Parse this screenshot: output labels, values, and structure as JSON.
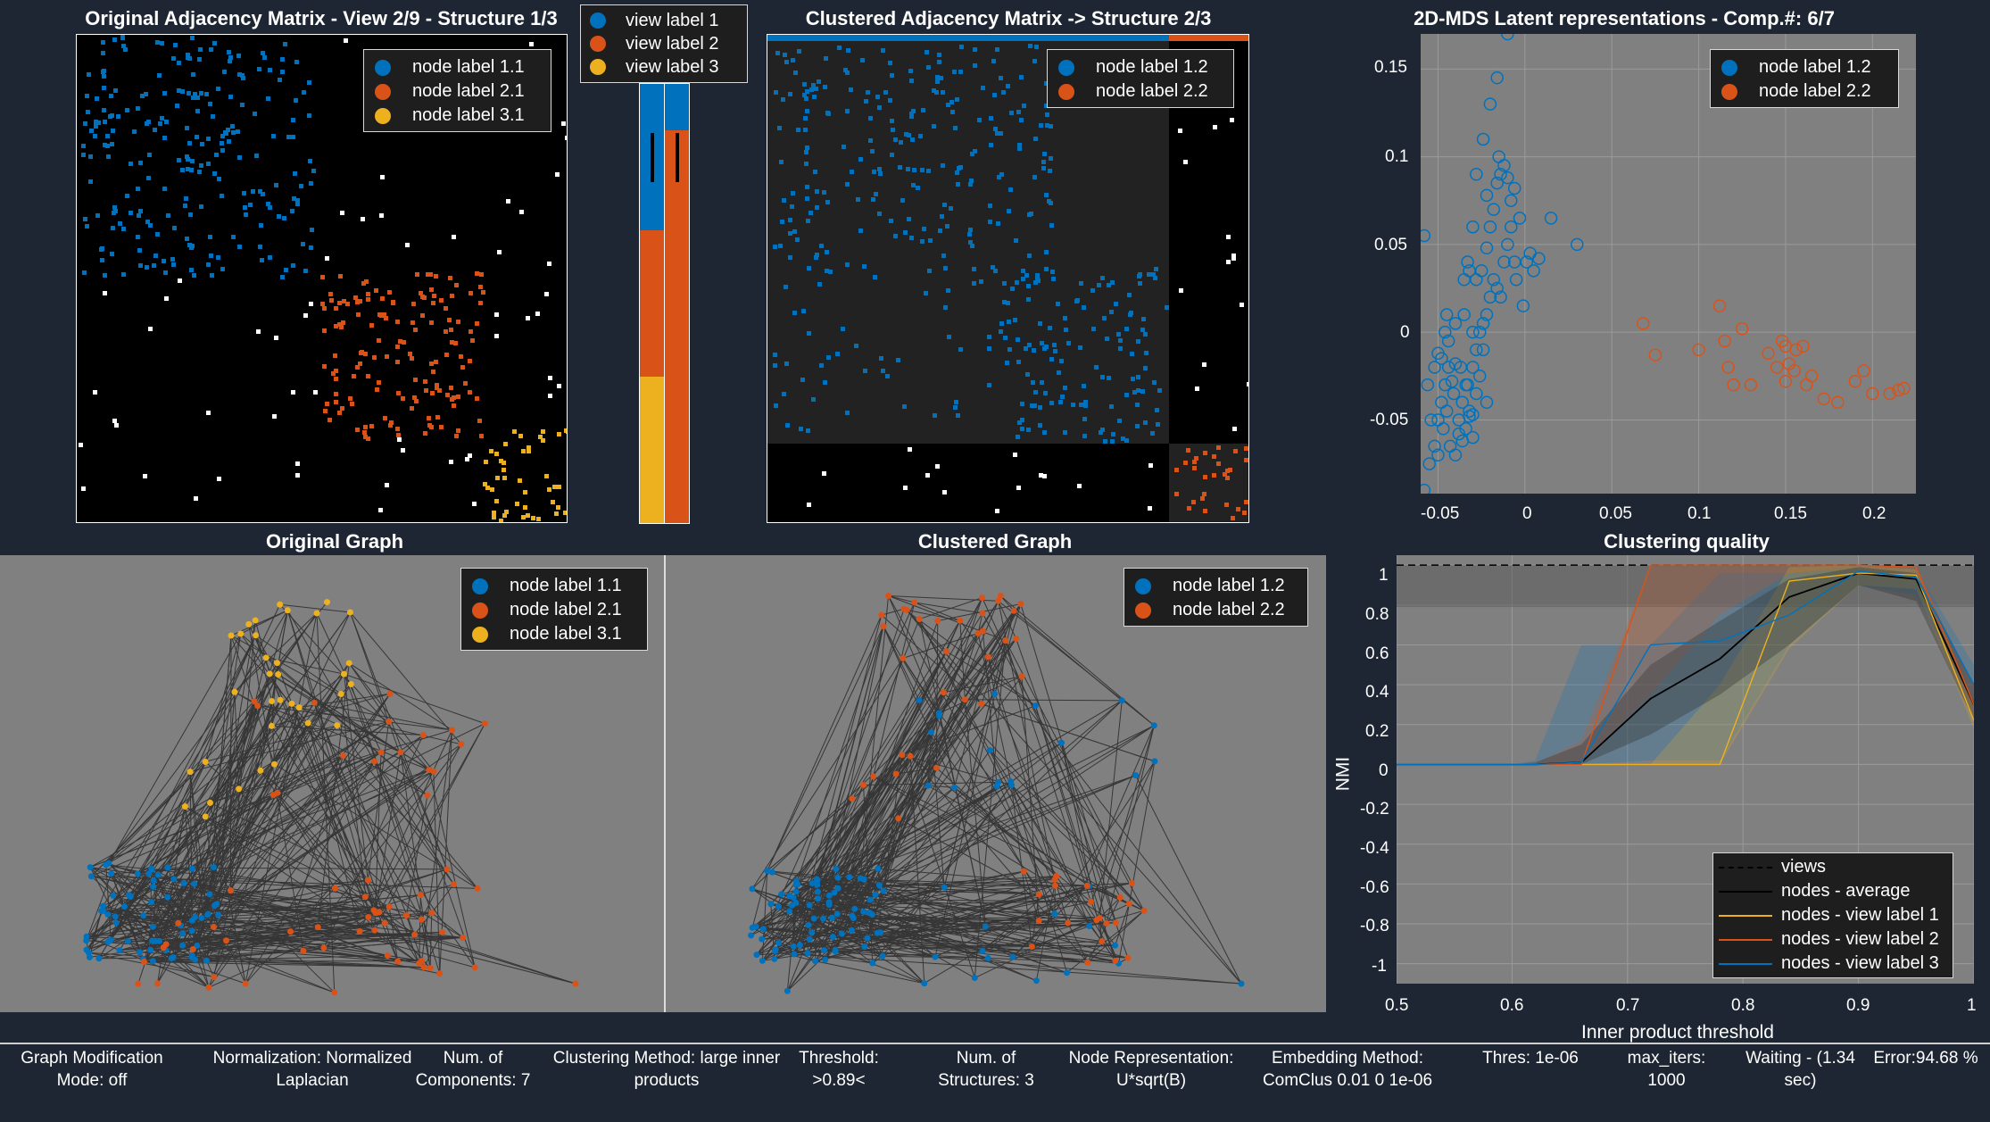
{
  "colors": {
    "blue": "#0072bd",
    "orange": "#d95319",
    "yellow": "#edb120",
    "figure_bg": "#1e2633",
    "axes_bg": "#808080"
  },
  "orig_matrix": {
    "title": "Original Adjacency Matrix - View 2/9 - Structure 1/3",
    "legend": [
      "node label 1.1",
      "node label 2.1",
      "node label 3.1"
    ]
  },
  "view_legend": [
    "view label 1",
    "view label 2",
    "view label 3"
  ],
  "clust_matrix": {
    "title": "Clustered Adjacency Matrix -> Structure 2/3",
    "legend": [
      "node label 1.2",
      "node label 2.2"
    ]
  },
  "mds": {
    "title": "2D-MDS Latent representations - Comp.#: 6/7",
    "legend": [
      "node label 1.2",
      "node label 2.2"
    ],
    "xticks": [
      "-0.05",
      "0",
      "0.05",
      "0.1",
      "0.15",
      "0.2"
    ],
    "yticks": [
      "0.15",
      "0.1",
      "0.05",
      "0",
      "-0.05"
    ]
  },
  "orig_graph": {
    "title": "Original Graph",
    "legend": [
      "node label 1.1",
      "node label 2.1",
      "node label 3.1"
    ]
  },
  "clust_graph": {
    "title": "Clustered Graph",
    "legend": [
      "node label 1.2",
      "node label 2.2"
    ]
  },
  "quality": {
    "title": "Clustering quality",
    "ylabel": "NMI",
    "xlabel": "Inner product threshold",
    "yticks": [
      "1",
      "0.8",
      "0.6",
      "0.4",
      "0.2",
      "0",
      "-0.2",
      "-0.4",
      "-0.6",
      "-0.8",
      "-1"
    ],
    "xticks": [
      "0.5",
      "0.6",
      "0.7",
      "0.8",
      "0.9",
      "1"
    ],
    "legend": [
      "views",
      "nodes - average",
      "nodes - view label 1",
      "nodes - view label 2",
      "nodes - view label 3"
    ]
  },
  "chart_data": [
    {
      "type": "scatter",
      "title": "2D-MDS Latent representations - Comp.#: 6/7",
      "xlim": [
        -0.06,
        0.225
      ],
      "ylim": [
        -0.092,
        0.17
      ],
      "series": [
        {
          "name": "node label 1.2",
          "color": "#0072bd",
          "points": [
            [
              -0.058,
              -0.09
            ],
            [
              -0.055,
              -0.075
            ],
            [
              -0.052,
              -0.065
            ],
            [
              -0.05,
              -0.05
            ],
            [
              -0.048,
              -0.04
            ],
            [
              -0.046,
              -0.03
            ],
            [
              -0.044,
              -0.02
            ],
            [
              -0.047,
              -0.055
            ],
            [
              -0.043,
              -0.065
            ],
            [
              -0.04,
              -0.07
            ],
            [
              -0.038,
              -0.05
            ],
            [
              -0.036,
              -0.04
            ],
            [
              -0.034,
              -0.03
            ],
            [
              -0.032,
              -0.045
            ],
            [
              -0.03,
              -0.06
            ],
            [
              -0.028,
              -0.035
            ],
            [
              -0.026,
              -0.025
            ],
            [
              -0.024,
              -0.01
            ],
            [
              -0.022,
              -0.04
            ],
            [
              -0.045,
              0.01
            ],
            [
              -0.04,
              0.005
            ],
            [
              -0.035,
              0.01
            ],
            [
              -0.03,
              0.0
            ],
            [
              -0.052,
              -0.02
            ],
            [
              -0.05,
              -0.012
            ],
            [
              -0.048,
              -0.015
            ],
            [
              -0.046,
              0.0
            ],
            [
              -0.044,
              -0.005
            ],
            [
              -0.042,
              -0.028
            ],
            [
              -0.04,
              -0.018
            ],
            [
              -0.038,
              -0.058
            ],
            [
              -0.036,
              -0.062
            ],
            [
              -0.034,
              -0.055
            ],
            [
              -0.032,
              -0.048
            ],
            [
              -0.03,
              -0.02
            ],
            [
              -0.028,
              -0.01
            ],
            [
              -0.026,
              0.0
            ],
            [
              -0.024,
              0.005
            ],
            [
              -0.022,
              0.01
            ],
            [
              -0.02,
              0.02
            ],
            [
              -0.018,
              0.03
            ],
            [
              -0.016,
              0.025
            ],
            [
              -0.014,
              0.02
            ],
            [
              -0.012,
              0.04
            ],
            [
              -0.01,
              0.05
            ],
            [
              -0.008,
              0.06
            ],
            [
              -0.006,
              0.04
            ],
            [
              -0.005,
              0.03
            ],
            [
              -0.003,
              0.065
            ],
            [
              -0.001,
              0.015
            ],
            [
              0.001,
              0.04
            ],
            [
              0.003,
              0.045
            ],
            [
              0.005,
              0.035
            ],
            [
              0.008,
              0.042
            ],
            [
              0.015,
              0.065
            ],
            [
              0.03,
              0.05
            ],
            [
              -0.025,
              0.035
            ],
            [
              -0.022,
              0.048
            ],
            [
              -0.02,
              0.06
            ],
            [
              -0.018,
              0.07
            ],
            [
              -0.016,
              0.085
            ],
            [
              -0.014,
              0.09
            ],
            [
              -0.012,
              0.095
            ],
            [
              -0.015,
              0.1
            ],
            [
              -0.022,
              0.078
            ],
            [
              -0.028,
              0.09
            ],
            [
              -0.03,
              0.06
            ],
            [
              -0.024,
              0.11
            ],
            [
              -0.02,
              0.13
            ],
            [
              -0.016,
              0.145
            ],
            [
              -0.01,
              0.088
            ],
            [
              -0.006,
              0.082
            ],
            [
              -0.008,
              0.075
            ],
            [
              -0.033,
              0.04
            ],
            [
              -0.035,
              0.03
            ],
            [
              -0.032,
              0.035
            ],
            [
              -0.028,
              0.03
            ],
            [
              -0.03,
              -0.047
            ],
            [
              -0.033,
              -0.03
            ],
            [
              -0.037,
              -0.02
            ],
            [
              -0.041,
              -0.035
            ],
            [
              -0.045,
              -0.045
            ],
            [
              -0.05,
              -0.07
            ],
            [
              -0.054,
              -0.05
            ],
            [
              -0.056,
              -0.03
            ],
            [
              -0.058,
              0.055
            ],
            [
              -0.01,
              0.17
            ]
          ]
        },
        {
          "name": "node label 2.2",
          "color": "#d95319",
          "points": [
            [
              0.068,
              0.005
            ],
            [
              0.075,
              -0.013
            ],
            [
              0.1,
              -0.01
            ],
            [
              0.112,
              0.015
            ],
            [
              0.115,
              -0.005
            ],
            [
              0.117,
              -0.02
            ],
            [
              0.12,
              -0.03
            ],
            [
              0.125,
              0.002
            ],
            [
              0.13,
              -0.03
            ],
            [
              0.14,
              -0.012
            ],
            [
              0.145,
              -0.02
            ],
            [
              0.148,
              -0.005
            ],
            [
              0.15,
              -0.008
            ],
            [
              0.152,
              -0.018
            ],
            [
              0.155,
              -0.022
            ],
            [
              0.16,
              -0.008
            ],
            [
              0.165,
              -0.025
            ],
            [
              0.18,
              -0.04
            ],
            [
              0.19,
              -0.028
            ],
            [
              0.195,
              -0.022
            ],
            [
              0.2,
              -0.035
            ],
            [
              0.21,
              -0.035
            ],
            [
              0.215,
              -0.033
            ],
            [
              0.218,
              -0.032
            ],
            [
              0.15,
              -0.028
            ],
            [
              0.156,
              -0.01
            ],
            [
              0.162,
              -0.03
            ],
            [
              0.172,
              -0.038
            ]
          ]
        }
      ]
    },
    {
      "type": "line",
      "title": "Clustering quality",
      "xlabel": "Inner product threshold",
      "ylabel": "NMI",
      "xlim": [
        0.5,
        1.0
      ],
      "ylim": [
        -1.1,
        1.05
      ],
      "x": [
        0.5,
        0.55,
        0.6,
        0.62,
        0.66,
        0.72,
        0.78,
        0.84,
        0.9,
        0.95,
        1.0
      ],
      "views_level": 1.0,
      "views_band": [
        0.79,
        1.0
      ],
      "series": [
        {
          "name": "nodes - average",
          "color": "#000000",
          "values": [
            0,
            0,
            0,
            0,
            0.01,
            0.33,
            0.53,
            0.84,
            0.96,
            0.93,
            0.3
          ],
          "band_low": [
            0,
            0,
            0,
            0,
            0,
            0.15,
            0.35,
            0.6,
            0.9,
            0.82,
            0.22
          ],
          "band_high": [
            0,
            0,
            0,
            0.01,
            0.1,
            0.5,
            0.72,
            0.93,
            0.99,
            0.96,
            0.4
          ]
        },
        {
          "name": "nodes - view label 1",
          "color": "#edb120",
          "values": [
            0,
            0,
            0,
            0,
            0,
            0,
            0,
            0.92,
            0.96,
            0.95,
            0.22
          ],
          "band_low": [
            0,
            0,
            0,
            0,
            0,
            0,
            0,
            0.58,
            0.9,
            0.88,
            0.18
          ],
          "band_high": [
            0,
            0,
            0,
            0,
            0,
            0,
            0.4,
            0.99,
            1.0,
            0.98,
            0.3
          ]
        },
        {
          "name": "nodes - view label 2",
          "color": "#d95319",
          "values": [
            0,
            0,
            0,
            0,
            0,
            1.0,
            1.0,
            1.0,
            1.0,
            0.99,
            0.3
          ],
          "band_low": [
            0,
            0,
            0,
            0,
            0,
            0.35,
            0.75,
            0.96,
            0.98,
            0.95,
            0.25
          ],
          "band_high": [
            0,
            0,
            0,
            0,
            0.12,
            1.0,
            1.0,
            1.0,
            1.0,
            1.0,
            0.38
          ]
        },
        {
          "name": "nodes - view label 3",
          "color": "#0072bd",
          "values": [
            0,
            0,
            0,
            0,
            0.01,
            0.6,
            0.62,
            0.75,
            0.97,
            0.94,
            0.4
          ],
          "band_low": [
            0,
            0,
            0,
            0,
            0,
            0.02,
            0.02,
            0.6,
            0.9,
            0.85,
            0.3
          ],
          "band_high": [
            0,
            0,
            0,
            0.02,
            0.6,
            0.6,
            0.96,
            0.96,
            1.0,
            0.98,
            0.5
          ]
        }
      ]
    }
  ],
  "status": [
    "Graph Modification Mode: off",
    "Normalization: Normalized Laplacian",
    "Num. of Components: 7",
    "Clustering Method: large inner products",
    "Threshold: >0.89<",
    "Num. of Structures: 3",
    "Node Representation: U*sqrt(B)",
    "Embedding Method: ComClus  0.01  0  1e-06",
    "Thres: 1e-06",
    "max_iters: 1000",
    "Waiting - (1.34 sec)",
    "Error:94.68 %"
  ]
}
